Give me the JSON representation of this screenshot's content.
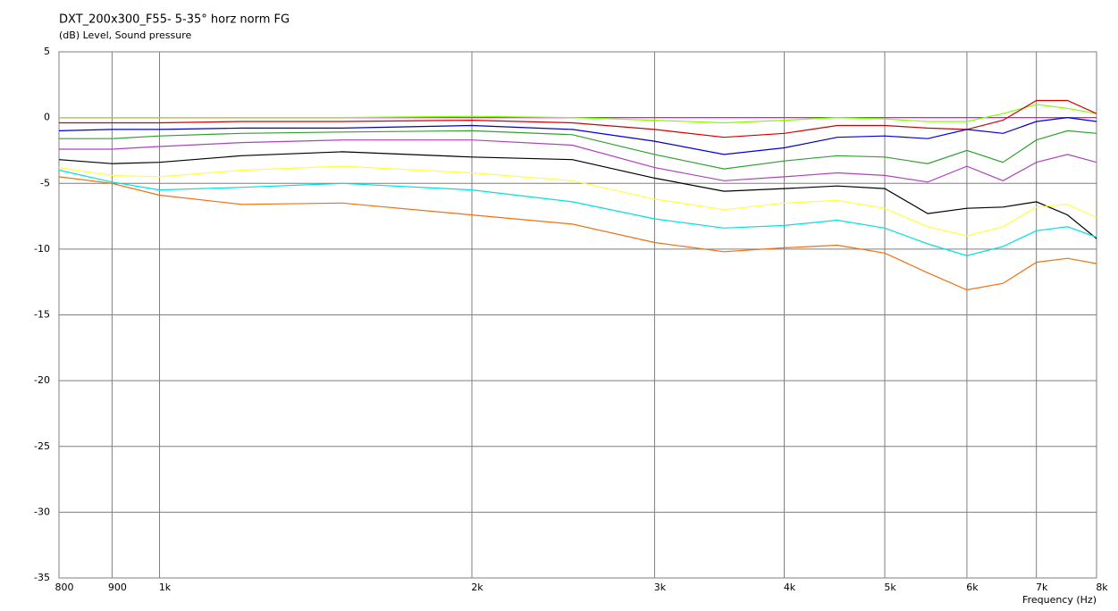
{
  "chart_data": {
    "type": "line",
    "title": "DXT_200x300_F55- 5-35° horz norm FG",
    "subtitle": "(dB)  Level, Sound pressure",
    "x_label": "Frequency  (Hz)",
    "x_scale": "log",
    "grid": true,
    "x": [
      800,
      900,
      1000,
      1200,
      1500,
      2000,
      2500,
      3000,
      3500,
      4000,
      4500,
      5000,
      5500,
      6000,
      6500,
      7000,
      7500,
      8000
    ],
    "xlim": [
      800,
      8000
    ],
    "xticks": [
      800,
      900,
      {
        "value": 1000,
        "label": "1k"
      },
      {
        "value": 2000,
        "label": "2k"
      },
      {
        "value": 3000,
        "label": "3k"
      },
      {
        "value": 4000,
        "label": "4k"
      },
      {
        "value": 5000,
        "label": "5k"
      },
      {
        "value": 6000,
        "label": "6k"
      },
      {
        "value": 7000,
        "label": "7k"
      },
      {
        "value": 8000,
        "label": "8k"
      }
    ],
    "ylim": [
      -35,
      5
    ],
    "yticks": [
      5,
      0,
      -5,
      -10,
      -15,
      -20,
      -25,
      -30,
      -35
    ],
    "series": [
      {
        "color": "#ff00ff",
        "values": [
          0,
          0,
          0,
          0,
          0,
          0,
          0,
          0,
          0,
          0,
          0,
          0,
          0,
          0,
          0,
          0,
          0,
          0
        ]
      },
      {
        "color": "#b8600a",
        "values": [
          0,
          0,
          0,
          0,
          0,
          null,
          null,
          null,
          null,
          null,
          null,
          null,
          null,
          null,
          null,
          null,
          null,
          null
        ]
      },
      {
        "color": "#80ff00",
        "values": [
          0,
          0,
          0,
          0,
          0,
          0.1,
          0,
          -0.2,
          -0.4,
          -0.2,
          0,
          -0.1,
          -0.3,
          -0.3,
          0.3,
          1.0,
          0.7,
          0.3
        ]
      },
      {
        "color": "#d00000",
        "values": [
          -0.4,
          -0.4,
          -0.4,
          -0.3,
          -0.3,
          -0.2,
          -0.4,
          -0.9,
          -1.5,
          -1.2,
          -0.6,
          -0.6,
          -0.8,
          -0.9,
          -0.2,
          1.3,
          1.3,
          0.3
        ]
      },
      {
        "color": "#0000d0",
        "values": [
          -1.0,
          -0.9,
          -0.9,
          -0.8,
          -0.8,
          -0.6,
          -0.9,
          -1.8,
          -2.8,
          -2.3,
          -1.5,
          -1.4,
          -1.6,
          -0.9,
          -1.2,
          -0.3,
          0,
          -0.3
        ]
      },
      {
        "color": "#30a030",
        "values": [
          -1.6,
          -1.6,
          -1.4,
          -1.2,
          -1.1,
          -1.0,
          -1.3,
          -2.8,
          -3.9,
          -3.3,
          -2.9,
          -3.0,
          -3.5,
          -2.5,
          -3.4,
          -1.7,
          -1.0,
          -1.2
        ]
      },
      {
        "color": "#b040c0",
        "values": [
          -2.4,
          -2.4,
          -2.2,
          -1.9,
          -1.7,
          -1.7,
          -2.1,
          -3.8,
          -4.8,
          -4.5,
          -4.2,
          -4.4,
          -4.9,
          -3.7,
          -4.8,
          -3.4,
          -2.8,
          -3.4
        ]
      },
      {
        "color": "#000000",
        "values": [
          -3.2,
          -3.5,
          -3.4,
          -2.9,
          -2.6,
          -3.0,
          -3.2,
          -4.6,
          -5.6,
          -5.4,
          -5.2,
          -5.4,
          -7.3,
          -6.9,
          -6.8,
          -6.4,
          -7.4,
          -9.2
        ]
      },
      {
        "color": "#ffff40",
        "values": [
          -3.8,
          -4.4,
          -4.5,
          -4.0,
          -3.7,
          -4.2,
          -4.8,
          -6.2,
          -7.0,
          -6.5,
          -6.3,
          -6.9,
          -8.3,
          -9.0,
          -8.3,
          -6.8,
          -6.6,
          -7.6
        ]
      },
      {
        "color": "#00e0e0",
        "values": [
          -4.0,
          -4.9,
          -5.5,
          -5.3,
          -5.0,
          -5.5,
          -6.4,
          -7.7,
          -8.4,
          -8.2,
          -7.8,
          -8.4,
          -9.6,
          -10.5,
          -9.8,
          -8.6,
          -8.3,
          -9.1
        ]
      },
      {
        "color": "#f07010",
        "values": [
          -4.5,
          -5.0,
          -5.9,
          -6.6,
          -6.5,
          -7.4,
          -8.1,
          -9.5,
          -10.2,
          -9.9,
          -9.7,
          -10.3,
          -11.8,
          -13.1,
          -12.6,
          -11.0,
          -10.7,
          -11.1
        ]
      }
    ]
  }
}
